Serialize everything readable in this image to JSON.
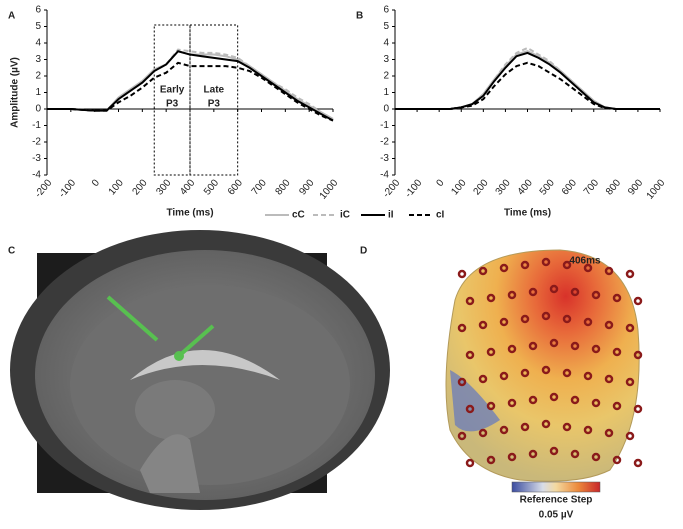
{
  "chart_data": [
    {
      "type": "line",
      "panel_label": "A",
      "y_label": "Amplitude (µV)",
      "x_label": "Time (ms)",
      "x": [
        -200,
        -150,
        -100,
        -50,
        0,
        50,
        100,
        150,
        200,
        250,
        300,
        350,
        400,
        450,
        500,
        550,
        600,
        650,
        700,
        750,
        800,
        850,
        900,
        950,
        1000
      ],
      "xlim": [
        -200,
        1000
      ],
      "xticks": [
        -200,
        -100,
        0,
        100,
        200,
        300,
        400,
        500,
        600,
        700,
        800,
        900,
        1000
      ],
      "ylim": [
        -4,
        6
      ],
      "yticks": [
        -4,
        -3,
        -2,
        -1,
        0,
        1,
        2,
        3,
        4,
        5,
        6
      ],
      "series": [
        {
          "name": "cC",
          "color": "#bbbbbb",
          "dashed": false,
          "values": [
            0,
            0,
            0,
            -0.05,
            -0.1,
            -0.1,
            0.7,
            1.2,
            1.7,
            2.4,
            2.7,
            3.5,
            3.3,
            3.3,
            3.3,
            3.2,
            3.0,
            2.6,
            2.1,
            1.6,
            1.1,
            0.6,
            0.2,
            -0.2,
            -0.6
          ]
        },
        {
          "name": "iC",
          "color": "#bbbbbb",
          "dashed": true,
          "values": [
            0,
            0,
            0,
            -0.05,
            -0.1,
            -0.1,
            0.6,
            1.1,
            1.6,
            2.3,
            2.7,
            3.6,
            3.5,
            3.4,
            3.4,
            3.3,
            3.1,
            2.6,
            2.1,
            1.6,
            1.2,
            0.7,
            0.3,
            -0.2,
            -0.6
          ]
        },
        {
          "name": "iI",
          "color": "#000000",
          "dashed": false,
          "values": [
            0,
            0,
            0,
            -0.05,
            -0.1,
            -0.1,
            0.6,
            1.1,
            1.6,
            2.3,
            2.7,
            3.5,
            3.3,
            3.2,
            3.1,
            3.0,
            2.9,
            2.5,
            2.0,
            1.5,
            1.0,
            0.5,
            0.1,
            -0.3,
            -0.7
          ]
        },
        {
          "name": "cI",
          "color": "#000000",
          "dashed": true,
          "values": [
            0,
            0,
            0,
            -0.05,
            -0.1,
            -0.1,
            0.4,
            0.8,
            1.3,
            1.9,
            2.2,
            2.8,
            2.6,
            2.6,
            2.6,
            2.6,
            2.5,
            2.3,
            1.9,
            1.4,
            0.9,
            0.4,
            0.0,
            -0.4,
            -0.7
          ]
        }
      ],
      "annotations": [
        {
          "lines": [
            "Early",
            "P3"
          ],
          "x0": 250,
          "x1": 400
        },
        {
          "lines": [
            "Late",
            "P3"
          ],
          "x0": 400,
          "x1": 600
        }
      ],
      "legend": "below"
    },
    {
      "type": "line",
      "panel_label": "B",
      "x_label": "Time (ms)",
      "x": [
        -200,
        -150,
        -100,
        -50,
        0,
        50,
        100,
        150,
        200,
        250,
        300,
        350,
        400,
        450,
        500,
        550,
        600,
        650,
        700,
        750,
        800,
        850,
        900,
        950,
        1000
      ],
      "xlim": [
        -200,
        1000
      ],
      "xticks": [
        -200,
        -100,
        0,
        100,
        200,
        300,
        400,
        500,
        600,
        700,
        800,
        900,
        1000
      ],
      "ylim": [
        -4,
        6
      ],
      "yticks": [
        -4,
        -3,
        -2,
        -1,
        0,
        1,
        2,
        3,
        4,
        5,
        6
      ],
      "series": [
        {
          "name": "cC",
          "color": "#bbbbbb",
          "dashed": false,
          "values": [
            0,
            0,
            0,
            0,
            0,
            0,
            0.1,
            0.3,
            0.9,
            1.8,
            2.6,
            3.3,
            3.5,
            3.2,
            2.8,
            2.3,
            1.7,
            1.1,
            0.5,
            0.1,
            0,
            0,
            0,
            0,
            0
          ]
        },
        {
          "name": "iC",
          "color": "#bbbbbb",
          "dashed": true,
          "values": [
            0,
            0,
            0,
            0,
            0,
            0,
            0.1,
            0.3,
            0.9,
            1.8,
            2.7,
            3.4,
            3.7,
            3.3,
            2.9,
            2.3,
            1.7,
            1.0,
            0.4,
            0.1,
            0,
            0,
            0,
            0,
            0
          ]
        },
        {
          "name": "iI",
          "color": "#000000",
          "dashed": false,
          "values": [
            0,
            0,
            0,
            0,
            0,
            0,
            0.1,
            0.3,
            0.8,
            1.7,
            2.5,
            3.2,
            3.4,
            3.1,
            2.7,
            2.2,
            1.6,
            1.0,
            0.4,
            0.1,
            0,
            0,
            0,
            0,
            0
          ]
        },
        {
          "name": "cI",
          "color": "#000000",
          "dashed": true,
          "values": [
            0,
            0,
            0,
            0,
            0,
            0,
            0.1,
            0.2,
            0.6,
            1.4,
            2.1,
            2.6,
            2.8,
            2.6,
            2.2,
            1.8,
            1.3,
            0.8,
            0.3,
            0.05,
            0,
            0,
            0,
            0,
            0
          ]
        }
      ]
    }
  ],
  "panel_c": {
    "label": "C"
  },
  "panel_d": {
    "label": "D",
    "time": "406ms",
    "colorbar_title": "Reference Step",
    "colorbar_step": "0.05 µV"
  }
}
